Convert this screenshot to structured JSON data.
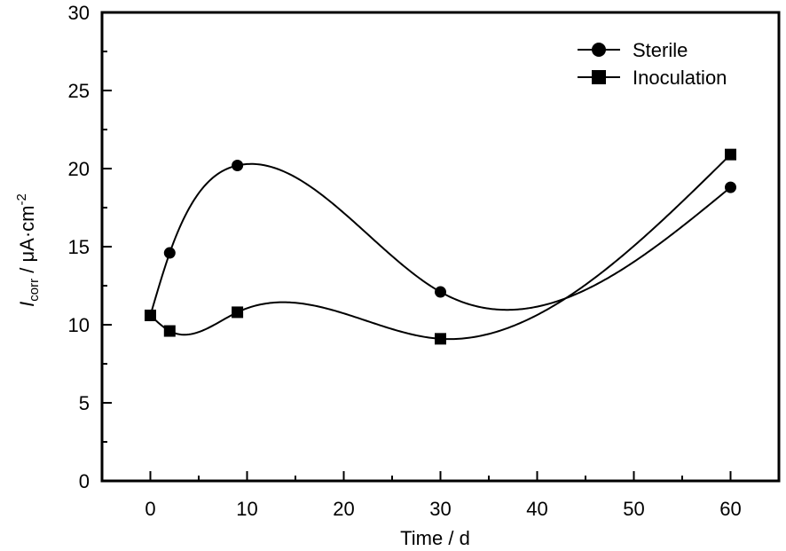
{
  "chart_data": {
    "type": "line",
    "title": "",
    "xlabel": "Time / d",
    "ylabel": {
      "symbol": "I",
      "subscript": "corr",
      "unit": " / μA·cm",
      "superscript": "-2"
    },
    "xlim": [
      -5,
      65
    ],
    "ylim": [
      0,
      30
    ],
    "xticks": [
      0,
      10,
      20,
      30,
      40,
      50,
      60
    ],
    "xtick_labels": [
      "0",
      "10",
      "20",
      "30",
      "40",
      "50",
      "60"
    ],
    "xminor": [
      5,
      15,
      25,
      35,
      45,
      55
    ],
    "yticks": [
      0,
      5,
      10,
      15,
      20,
      25,
      30
    ],
    "ytick_labels": [
      "0",
      "5",
      "10",
      "15",
      "20",
      "25",
      "30"
    ],
    "yminor": [
      2.5,
      7.5,
      12.5,
      17.5,
      22.5,
      27.5
    ],
    "grid": false,
    "legend_position": "top-right",
    "smooth": true,
    "series": [
      {
        "name": "Sterile",
        "marker": "circle",
        "color": "#000000",
        "x": [
          0,
          2,
          9,
          30,
          60
        ],
        "y": [
          10.6,
          14.6,
          20.2,
          12.1,
          18.8
        ]
      },
      {
        "name": "Inoculation",
        "marker": "square",
        "color": "#000000",
        "x": [
          0,
          2,
          9,
          30,
          60
        ],
        "y": [
          10.6,
          9.6,
          10.8,
          9.1,
          20.9
        ]
      }
    ]
  }
}
